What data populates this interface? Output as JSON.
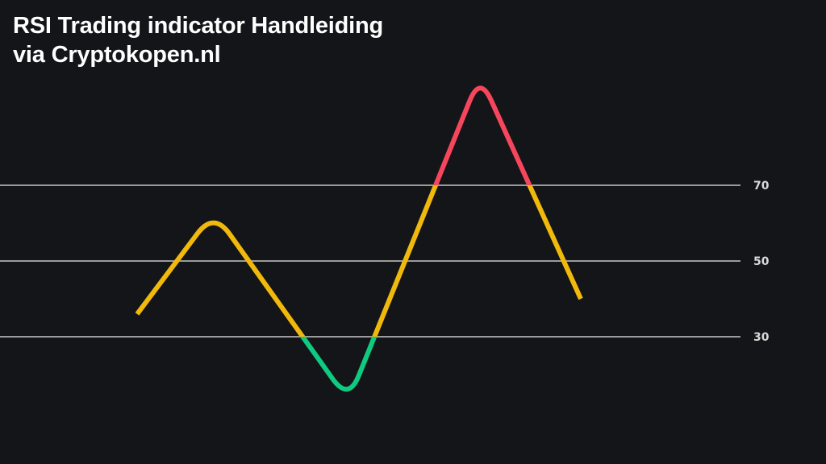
{
  "title": {
    "line1": "RSI Trading indicator Handleiding",
    "line2": "via Cryptokopen.nl"
  },
  "colors": {
    "background": "#141518",
    "neutral_zone": "#f0b90b",
    "oversold_zone": "#0ecb81",
    "overbought_zone": "#f6465d",
    "gridline": "#c8c8c8",
    "text": "#ffffff"
  },
  "chart_data": {
    "type": "line",
    "title": "",
    "xlabel": "",
    "ylabel": "",
    "ylim": [
      0,
      100
    ],
    "levels": [
      70,
      50,
      30
    ],
    "tick_labels": [
      "70",
      "50",
      "30"
    ],
    "thresholds": {
      "overbought": 70,
      "oversold": 30
    },
    "grid": true,
    "series": [
      {
        "points": [
          {
            "x": 0,
            "y": 36
          },
          {
            "x": 1,
            "y": 63
          },
          {
            "x": 2,
            "y": 13
          },
          {
            "x": 3,
            "y": 99
          },
          {
            "x": 4,
            "y": 40
          }
        ]
      }
    ]
  }
}
